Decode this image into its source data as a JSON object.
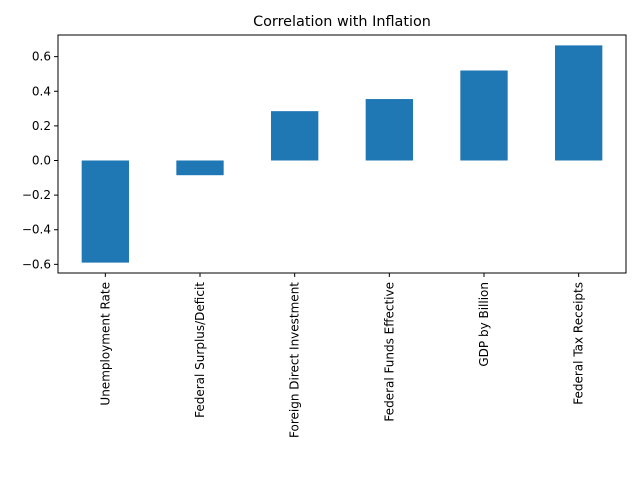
{
  "chart_data": {
    "type": "bar",
    "title": "Correlation with Inflation",
    "xlabel": "",
    "ylabel": "",
    "categories": [
      "Unemployment Rate",
      "Federal Surplus/Deficit",
      "Foreign Direct Investment",
      "Federal Funds Effective",
      "GDP by Billion",
      "Federal Tax Receipts"
    ],
    "values": [
      -0.59,
      -0.085,
      0.285,
      0.355,
      0.52,
      0.665
    ],
    "ylim": [
      -0.65,
      0.725
    ],
    "yticks": [
      -0.6,
      -0.4,
      -0.2,
      0.0,
      0.2,
      0.4,
      0.6
    ],
    "ytick_labels": [
      "−0.6",
      "−0.4",
      "−0.2",
      "0.0",
      "0.2",
      "0.4",
      "0.6"
    ],
    "bar_color": "#1f77b4",
    "grid": false,
    "legend": "none"
  }
}
